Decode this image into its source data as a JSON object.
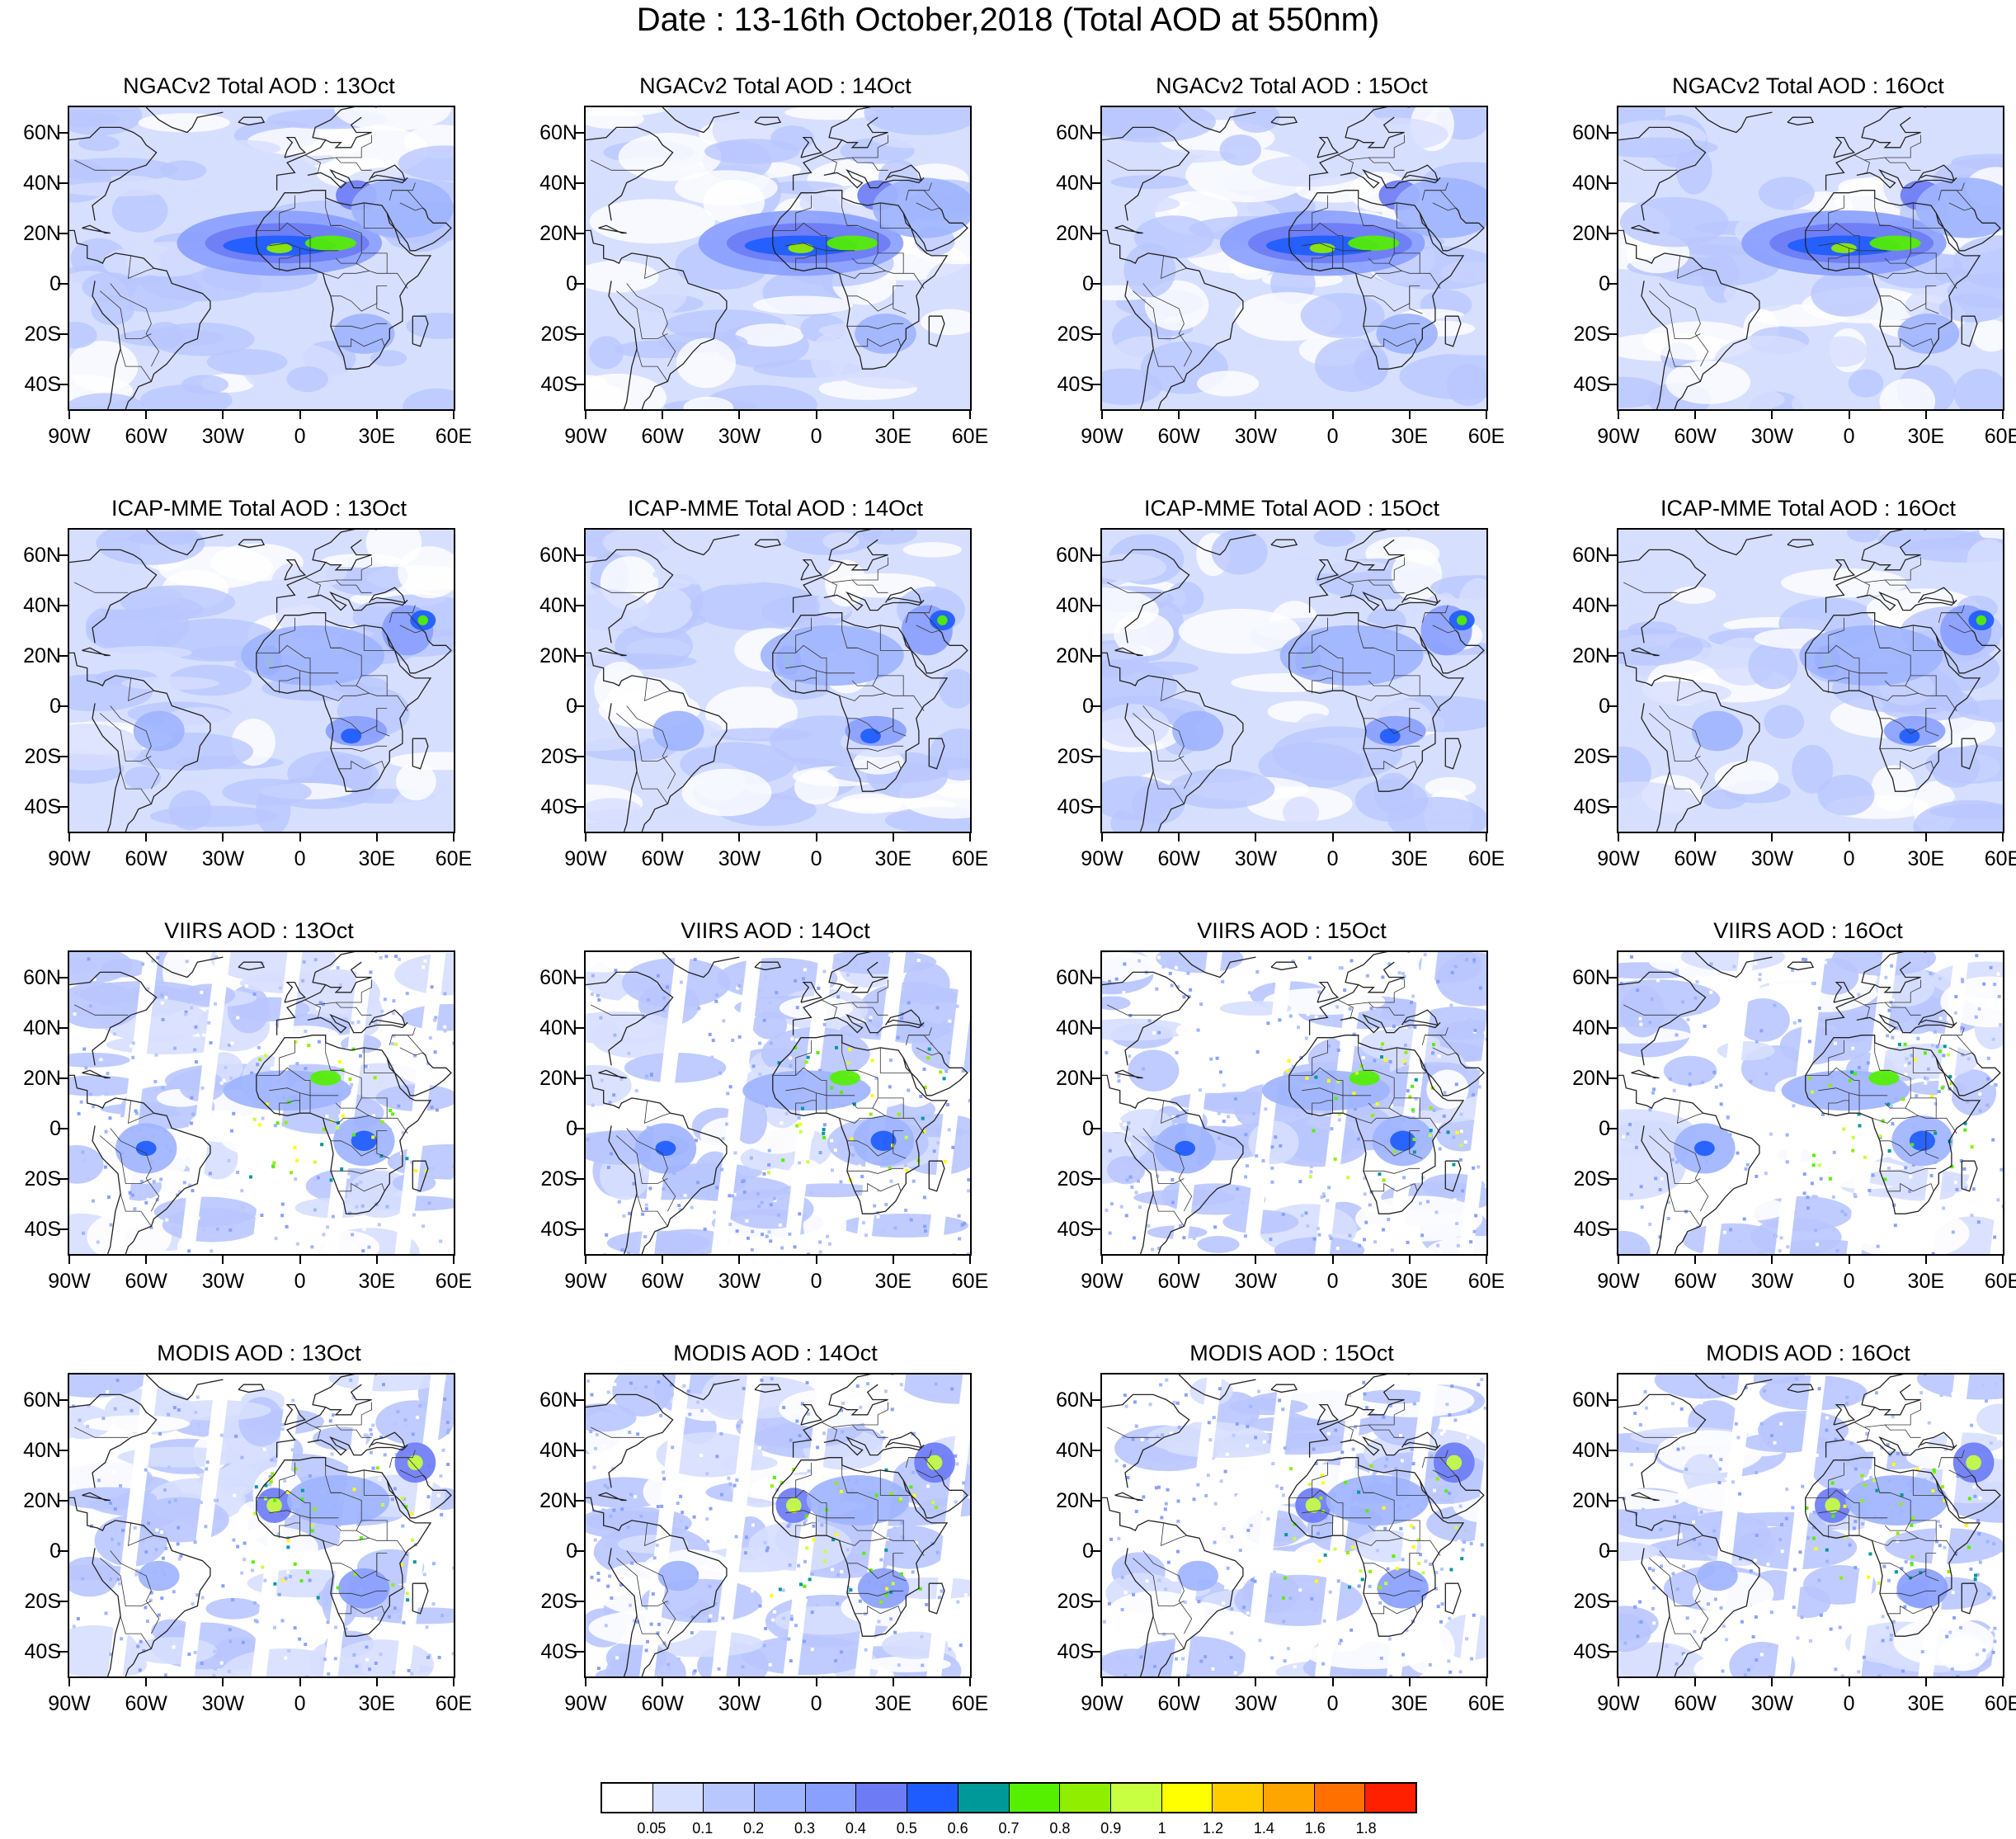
{
  "title": "Date : 13-16th October,2018 (Total AOD at 550nm)",
  "lat_ticks": [
    "60N",
    "40N",
    "20N",
    "0",
    "20S",
    "40S"
  ],
  "lon_ticks": [
    "90W",
    "60W",
    "30W",
    "0",
    "30E",
    "60E"
  ],
  "panels": [
    {
      "title": "NGACv2 Total AOD : 13Oct",
      "style": "model-dust",
      "shift": 0
    },
    {
      "title": "NGACv2 Total AOD : 14Oct",
      "style": "model-dust",
      "shift": 1
    },
    {
      "title": "NGACv2 Total AOD : 15Oct",
      "style": "model-dust",
      "shift": 2
    },
    {
      "title": "NGACv2 Total AOD : 16Oct",
      "style": "model-dust",
      "shift": 3
    },
    {
      "title": "ICAP-MME Total AOD : 13Oct",
      "style": "model-ens",
      "shift": 0
    },
    {
      "title": "ICAP-MME Total AOD : 14Oct",
      "style": "model-ens",
      "shift": 1
    },
    {
      "title": "ICAP-MME Total AOD : 15Oct",
      "style": "model-ens",
      "shift": 2
    },
    {
      "title": "ICAP-MME Total AOD : 16Oct",
      "style": "model-ens",
      "shift": 3
    },
    {
      "title": "VIIRS AOD : 13Oct",
      "style": "satellite-viirs",
      "shift": 0
    },
    {
      "title": "VIIRS AOD : 14Oct",
      "style": "satellite-viirs",
      "shift": 1
    },
    {
      "title": "VIIRS AOD : 15Oct",
      "style": "satellite-viirs",
      "shift": 2
    },
    {
      "title": "VIIRS AOD : 16Oct",
      "style": "satellite-viirs",
      "shift": 3
    },
    {
      "title": "MODIS AOD : 13Oct",
      "style": "satellite-modis",
      "shift": 0
    },
    {
      "title": "MODIS AOD : 14Oct",
      "style": "satellite-modis",
      "shift": 1
    },
    {
      "title": "MODIS AOD : 15Oct",
      "style": "satellite-modis",
      "shift": 2
    },
    {
      "title": "MODIS AOD : 16Oct",
      "style": "satellite-modis",
      "shift": 3
    }
  ],
  "colorbar": {
    "colors": [
      "#ffffff",
      "#d7dfff",
      "#b9c7ff",
      "#9fb4ff",
      "#8aa0ff",
      "#6d7cf5",
      "#1e5cff",
      "#009999",
      "#54f000",
      "#90ee00",
      "#c8ff40",
      "#ffff00",
      "#ffcc00",
      "#ffa500",
      "#ff7000",
      "#ff2000"
    ],
    "labels": [
      "0.05",
      "0.1",
      "0.2",
      "0.3",
      "0.4",
      "0.5",
      "0.6",
      "0.7",
      "0.8",
      "0.9",
      "1",
      "1.2",
      "1.4",
      "1.6",
      "1.8"
    ]
  }
}
